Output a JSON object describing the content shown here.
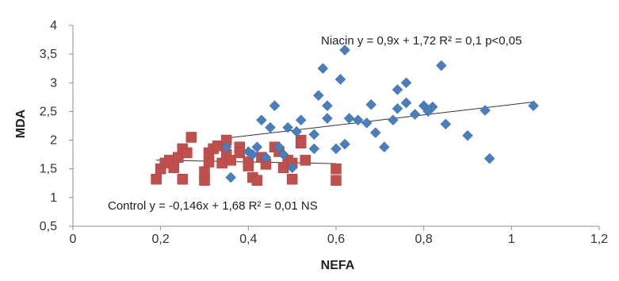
{
  "chart_data": {
    "type": "scatter",
    "title": "",
    "xlabel": "NEFA",
    "ylabel": "MDA",
    "xlim": [
      0,
      1.2
    ],
    "ylim": [
      0.5,
      4
    ],
    "x_ticks": [
      "0",
      "0,2",
      "0,4",
      "0,6",
      "0,8",
      "1",
      "1,2"
    ],
    "y_ticks": [
      "0,5",
      "1",
      "1,5",
      "2",
      "2,5",
      "3",
      "3,5",
      "4"
    ],
    "grid": false,
    "series": [
      {
        "marker": "diamond",
        "color": "#4a7ebb",
        "points": [
          [
            0.35,
            1.88
          ],
          [
            0.36,
            1.35
          ],
          [
            0.4,
            1.8
          ],
          [
            0.41,
            1.75
          ],
          [
            0.42,
            1.88
          ],
          [
            0.43,
            2.35
          ],
          [
            0.44,
            1.7
          ],
          [
            0.45,
            2.22
          ],
          [
            0.46,
            2.6
          ],
          [
            0.47,
            1.88
          ],
          [
            0.48,
            1.75
          ],
          [
            0.49,
            2.22
          ],
          [
            0.5,
            1.52
          ],
          [
            0.51,
            2.15
          ],
          [
            0.52,
            2.35
          ],
          [
            0.55,
            1.85
          ],
          [
            0.55,
            2.1
          ],
          [
            0.56,
            2.78
          ],
          [
            0.57,
            3.25
          ],
          [
            0.58,
            2.6
          ],
          [
            0.58,
            2.38
          ],
          [
            0.6,
            1.85
          ],
          [
            0.61,
            3.06
          ],
          [
            0.62,
            1.93
          ],
          [
            0.62,
            3.57
          ],
          [
            0.63,
            2.38
          ],
          [
            0.65,
            2.35
          ],
          [
            0.67,
            2.3
          ],
          [
            0.68,
            2.62
          ],
          [
            0.69,
            2.13
          ],
          [
            0.71,
            1.88
          ],
          [
            0.73,
            2.35
          ],
          [
            0.74,
            2.55
          ],
          [
            0.74,
            2.88
          ],
          [
            0.76,
            3.0
          ],
          [
            0.76,
            2.65
          ],
          [
            0.78,
            2.45
          ],
          [
            0.8,
            2.6
          ],
          [
            0.81,
            2.5
          ],
          [
            0.82,
            2.58
          ],
          [
            0.84,
            3.3
          ],
          [
            0.85,
            2.28
          ],
          [
            0.9,
            2.08
          ],
          [
            0.94,
            2.52
          ],
          [
            0.95,
            1.68
          ],
          [
            1.05,
            2.6
          ]
        ]
      },
      {
        "marker": "square",
        "color": "#c0504d",
        "points": [
          [
            0.19,
            1.32
          ],
          [
            0.2,
            1.5
          ],
          [
            0.21,
            1.6
          ],
          [
            0.22,
            1.65
          ],
          [
            0.23,
            1.52
          ],
          [
            0.24,
            1.7
          ],
          [
            0.25,
            1.85
          ],
          [
            0.25,
            1.32
          ],
          [
            0.26,
            1.78
          ],
          [
            0.27,
            2.05
          ],
          [
            0.3,
            1.3
          ],
          [
            0.3,
            1.45
          ],
          [
            0.31,
            1.62
          ],
          [
            0.31,
            1.78
          ],
          [
            0.32,
            1.85
          ],
          [
            0.33,
            1.9
          ],
          [
            0.34,
            1.6
          ],
          [
            0.35,
            1.75
          ],
          [
            0.35,
            2.0
          ],
          [
            0.36,
            1.65
          ],
          [
            0.38,
            1.88
          ],
          [
            0.38,
            1.78
          ],
          [
            0.4,
            1.55
          ],
          [
            0.4,
            1.62
          ],
          [
            0.41,
            1.35
          ],
          [
            0.42,
            1.3
          ],
          [
            0.43,
            1.7
          ],
          [
            0.44,
            1.58
          ],
          [
            0.46,
            1.88
          ],
          [
            0.47,
            1.8
          ],
          [
            0.48,
            1.52
          ],
          [
            0.49,
            1.65
          ],
          [
            0.5,
            1.32
          ],
          [
            0.5,
            1.6
          ],
          [
            0.52,
            2.0
          ],
          [
            0.52,
            1.95
          ],
          [
            0.53,
            1.65
          ],
          [
            0.6,
            1.5
          ],
          [
            0.6,
            1.3
          ]
        ]
      }
    ],
    "trendlines": [
      {
        "x": [
          0.35,
          1.05
        ],
        "y": [
          2.035,
          2.665
        ],
        "color": "#333333"
      },
      {
        "x": [
          0.19,
          0.6
        ],
        "y": [
          1.652,
          1.592
        ],
        "color": "#333333"
      }
    ],
    "annotations": [
      {
        "text": "Niacin y = 0,9x + 1,72  R² = 0,1  p<0,05"
      },
      {
        "text": "Control y = -0,146x + 1,68   R² = 0,01  NS"
      }
    ]
  }
}
